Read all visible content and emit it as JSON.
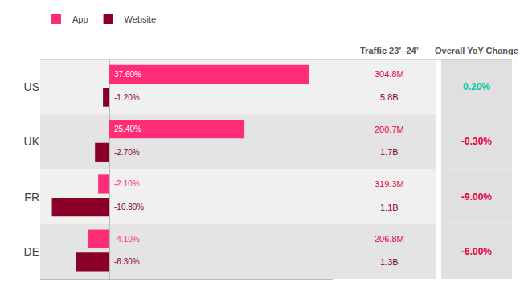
{
  "chart_data": {
    "type": "bar",
    "orientation": "horizontal",
    "categories": [
      "US",
      "UK",
      "FR",
      "DE"
    ],
    "series": [
      {
        "name": "App",
        "color": "#ff2d78",
        "values": [
          37.6,
          25.4,
          -2.1,
          -4.1
        ],
        "value_labels": [
          "37.60%",
          "25.40%",
          "-2.10%",
          "-4.10%"
        ]
      },
      {
        "name": "Website",
        "color": "#8b0028",
        "values": [
          -1.2,
          -2.7,
          -10.8,
          -6.3
        ],
        "value_labels": [
          "-1.20%",
          "-2.70%",
          "-10.80%",
          "-6.30%"
        ]
      }
    ],
    "xlim": [
      -13,
      42
    ],
    "xticks": [],
    "data_labels": true,
    "tick_labels": "y",
    "grid": false,
    "legend": "upper left",
    "columns": [
      {
        "header": "Traffic 23’–24’",
        "series": [
          {
            "name": "App",
            "color": "#e8003d",
            "texts": [
              "304.8M",
              "200.7M",
              "319.3M",
              "206.8M"
            ]
          },
          {
            "name": "Website",
            "color": "#8b0028",
            "texts": [
              "5.8B",
              "1.7B",
              "1.1B",
              "1.3B"
            ]
          }
        ]
      },
      {
        "header": "Overall YoY Change",
        "texts": [
          "0.20%",
          "-0.30%",
          "-9.00%",
          "-6.00%"
        ],
        "colors": [
          "#00c9a7",
          "#e8003d",
          "#e8003d",
          "#e8003d"
        ]
      }
    ]
  }
}
